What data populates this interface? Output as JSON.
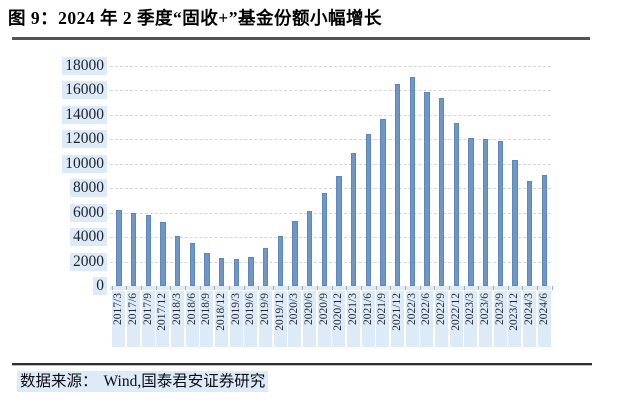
{
  "header": {
    "title": "图 9：2024 年 2 季度“固收+”基金份额小幅增长"
  },
  "footer": {
    "source_label": "数据来源：",
    "source_text": "Wind,国泰君安证券研究"
  },
  "colors": {
    "bar_fill": "#6f96c8",
    "bar_edge": "#5d86ba",
    "label_highlight": "#dcebf7",
    "gridline": "#d6d6d6",
    "title_text": "#000000",
    "axis_text": "#1e222b"
  },
  "chart_data": {
    "type": "bar",
    "title": "图 9：2024 年 2 季度“固收+”基金份额小幅增长",
    "categories": [
      "2017/3",
      "2017/6",
      "2017/9",
      "2017/12",
      "2018/3",
      "2018/6",
      "2018/9",
      "2018/12",
      "2019/3",
      "2019/6",
      "2019/9",
      "2019/12",
      "2020/3",
      "2020/6",
      "2020/9",
      "2020/12",
      "2021/3",
      "2021/6",
      "2021/9",
      "2021/12",
      "2022/3",
      "2022/6",
      "2022/9",
      "2022/12",
      "2023/3",
      "2023/6",
      "2023/9",
      "2023/12",
      "2024/3",
      "2024/6"
    ],
    "values": [
      6200,
      6000,
      5800,
      5200,
      4100,
      3500,
      2700,
      2300,
      2200,
      2400,
      3100,
      4100,
      5300,
      6100,
      7600,
      9000,
      10900,
      12400,
      13700,
      16500,
      17100,
      15900,
      15400,
      13300,
      12100,
      12000,
      11900,
      10300,
      8600,
      9100
    ],
    "xlabel": "",
    "ylabel": "",
    "ylim": [
      0,
      18000
    ],
    "yticks": [
      0,
      2000,
      4000,
      6000,
      8000,
      10000,
      12000,
      14000,
      16000,
      18000
    ],
    "grid": "horizontal-dashed",
    "legend_position": "none",
    "bar_color": "#6f96c8"
  }
}
